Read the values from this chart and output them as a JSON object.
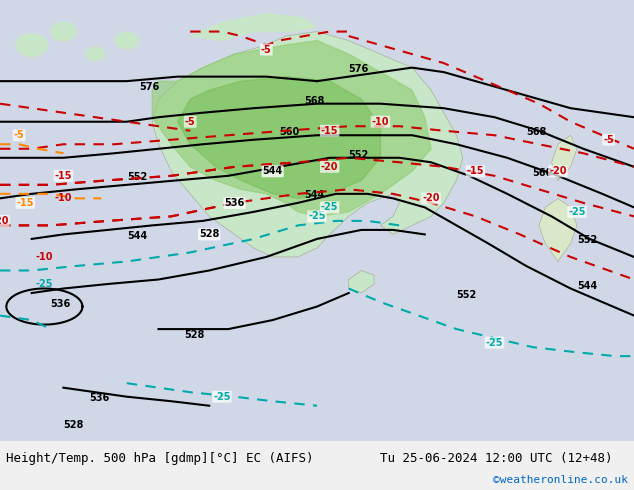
{
  "title_left": "Height/Temp. 500 hPa [gdmp][°C] EC (AIFS)",
  "title_right": "Tu 25-06-2024 12:00 UTC (12+48)",
  "watermark": "©weatheronline.co.uk",
  "bg_color": "#d0d8e8",
  "land_color": "#c8e6c8",
  "land_color_highlighted": "#a8d8a8",
  "contour_color_black": "#000000",
  "contour_color_red": "#cc0000",
  "contour_color_orange": "#ff8800",
  "contour_color_cyan": "#00cccc",
  "font_size_title": 9,
  "font_size_watermark": 8,
  "figsize": [
    6.34,
    4.9
  ],
  "dpi": 100,
  "bottom_bar_color": "#f0f0f0",
  "bottom_text_color": "#000000",
  "watermark_color": "#0066cc"
}
